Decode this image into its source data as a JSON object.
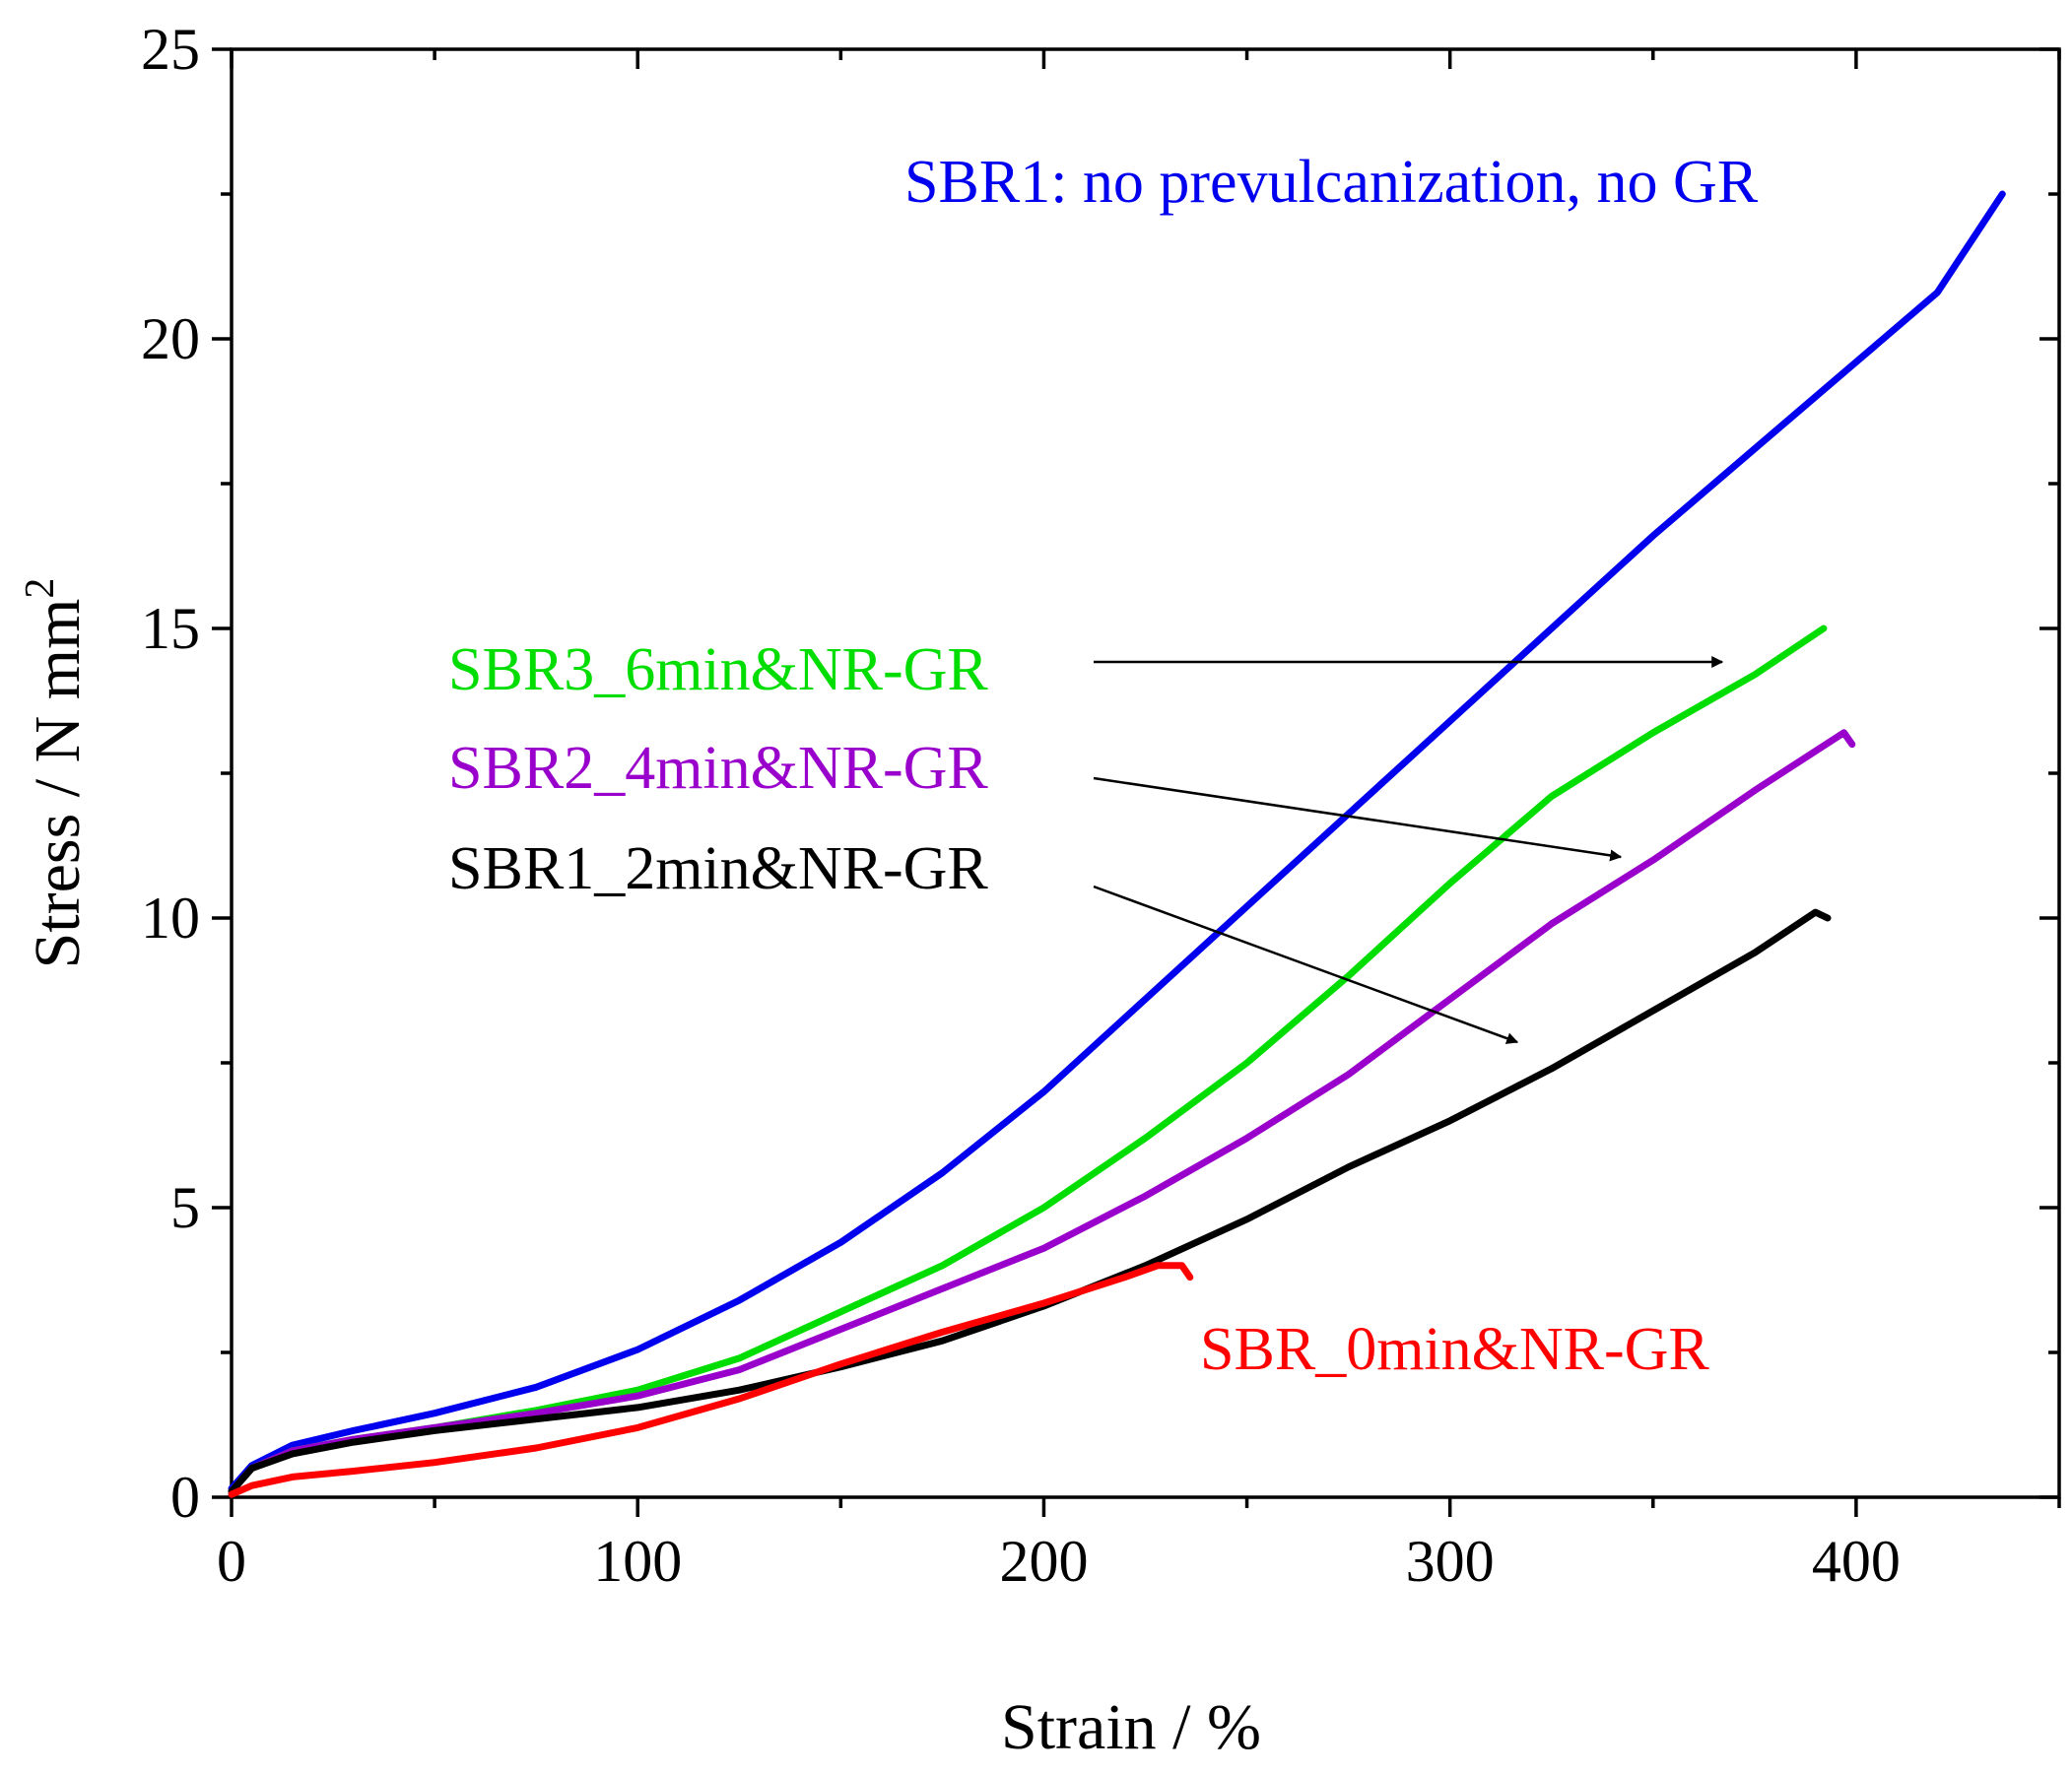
{
  "chart_data": {
    "type": "line",
    "xlabel": "Strain / %",
    "ylabel": "Stress / N mm",
    "ylabel_sup": "2",
    "xlim": [
      0,
      450
    ],
    "ylim": [
      0,
      25
    ],
    "x_major_ticks": [
      0,
      100,
      200,
      300,
      400
    ],
    "x_tick_labels": [
      "0",
      "100",
      "200",
      "300",
      "400"
    ],
    "x_minor_ticks": [
      50,
      150,
      250,
      350,
      450
    ],
    "y_major_ticks": [
      0,
      5,
      10,
      15,
      20,
      25
    ],
    "y_tick_labels": [
      "0",
      "5",
      "10",
      "15",
      "20",
      "25"
    ],
    "y_minor_ticks": [
      2.5,
      7.5,
      12.5,
      17.5,
      22.5
    ],
    "grid": false,
    "series": [
      {
        "name": "SBR1: no prevulcanization, no GR",
        "color": "#0000ee",
        "points": [
          [
            0,
            0.15
          ],
          [
            5,
            0.55
          ],
          [
            15,
            0.9
          ],
          [
            30,
            1.15
          ],
          [
            50,
            1.45
          ],
          [
            75,
            1.9
          ],
          [
            100,
            2.55
          ],
          [
            125,
            3.4
          ],
          [
            150,
            4.4
          ],
          [
            175,
            5.6
          ],
          [
            200,
            7.0
          ],
          [
            225,
            8.6
          ],
          [
            250,
            10.2
          ],
          [
            275,
            11.8
          ],
          [
            300,
            13.4
          ],
          [
            325,
            15.0
          ],
          [
            350,
            16.6
          ],
          [
            375,
            18.1
          ],
          [
            400,
            19.6
          ],
          [
            420,
            20.8
          ],
          [
            436,
            22.5
          ]
        ]
      },
      {
        "name": "SBR3_6min&NR-GR",
        "color": "#00dd00",
        "points": [
          [
            0,
            0.1
          ],
          [
            5,
            0.5
          ],
          [
            15,
            0.8
          ],
          [
            30,
            1.0
          ],
          [
            50,
            1.2
          ],
          [
            75,
            1.5
          ],
          [
            100,
            1.85
          ],
          [
            125,
            2.4
          ],
          [
            150,
            3.2
          ],
          [
            175,
            4.0
          ],
          [
            200,
            5.0
          ],
          [
            225,
            6.2
          ],
          [
            250,
            7.5
          ],
          [
            275,
            9.0
          ],
          [
            300,
            10.6
          ],
          [
            325,
            12.1
          ],
          [
            350,
            13.2
          ],
          [
            375,
            14.2
          ],
          [
            392,
            15.0
          ]
        ]
      },
      {
        "name": "SBR2_4min&NR-GR",
        "color": "#9900cc",
        "points": [
          [
            0,
            0.1
          ],
          [
            5,
            0.5
          ],
          [
            15,
            0.8
          ],
          [
            30,
            1.0
          ],
          [
            50,
            1.2
          ],
          [
            75,
            1.45
          ],
          [
            100,
            1.75
          ],
          [
            125,
            2.2
          ],
          [
            150,
            2.9
          ],
          [
            175,
            3.6
          ],
          [
            200,
            4.3
          ],
          [
            225,
            5.2
          ],
          [
            250,
            6.2
          ],
          [
            275,
            7.3
          ],
          [
            300,
            8.6
          ],
          [
            325,
            9.9
          ],
          [
            350,
            11.0
          ],
          [
            375,
            12.2
          ],
          [
            397,
            13.2
          ],
          [
            399,
            13.0
          ]
        ]
      },
      {
        "name": "SBR1_2min&NR-GR",
        "color": "#000000",
        "points": [
          [
            0,
            0.1
          ],
          [
            5,
            0.5
          ],
          [
            15,
            0.75
          ],
          [
            30,
            0.95
          ],
          [
            50,
            1.15
          ],
          [
            75,
            1.35
          ],
          [
            100,
            1.55
          ],
          [
            125,
            1.85
          ],
          [
            150,
            2.25
          ],
          [
            175,
            2.7
          ],
          [
            200,
            3.3
          ],
          [
            225,
            4.0
          ],
          [
            250,
            4.8
          ],
          [
            275,
            5.7
          ],
          [
            300,
            6.5
          ],
          [
            325,
            7.4
          ],
          [
            350,
            8.4
          ],
          [
            375,
            9.4
          ],
          [
            390,
            10.1
          ],
          [
            393,
            10.0
          ]
        ]
      },
      {
        "name": "SBR_0min&NR-GR",
        "color": "#ff0000",
        "points": [
          [
            0,
            0.05
          ],
          [
            5,
            0.2
          ],
          [
            15,
            0.35
          ],
          [
            30,
            0.45
          ],
          [
            50,
            0.6
          ],
          [
            75,
            0.85
          ],
          [
            100,
            1.2
          ],
          [
            125,
            1.7
          ],
          [
            150,
            2.3
          ],
          [
            175,
            2.85
          ],
          [
            200,
            3.35
          ],
          [
            220,
            3.8
          ],
          [
            228,
            4.0
          ],
          [
            234,
            4.0
          ],
          [
            236,
            3.8
          ]
        ]
      }
    ],
    "annotations": [
      {
        "text": "SBR1: no prevulcanization, no GR",
        "color": "#0000ee",
        "series": 0,
        "arrow": false
      },
      {
        "text": "SBR3_6min&NR-GR",
        "color": "#00dd00",
        "series": 1,
        "arrow": true
      },
      {
        "text": "SBR2_4min&NR-GR",
        "color": "#9900cc",
        "series": 2,
        "arrow": true
      },
      {
        "text": "SBR1_2min&NR-GR",
        "color": "#000000",
        "series": 3,
        "arrow": true
      },
      {
        "text": "SBR_0min&NR-GR",
        "color": "#ff0000",
        "series": 4,
        "arrow": false
      }
    ]
  }
}
